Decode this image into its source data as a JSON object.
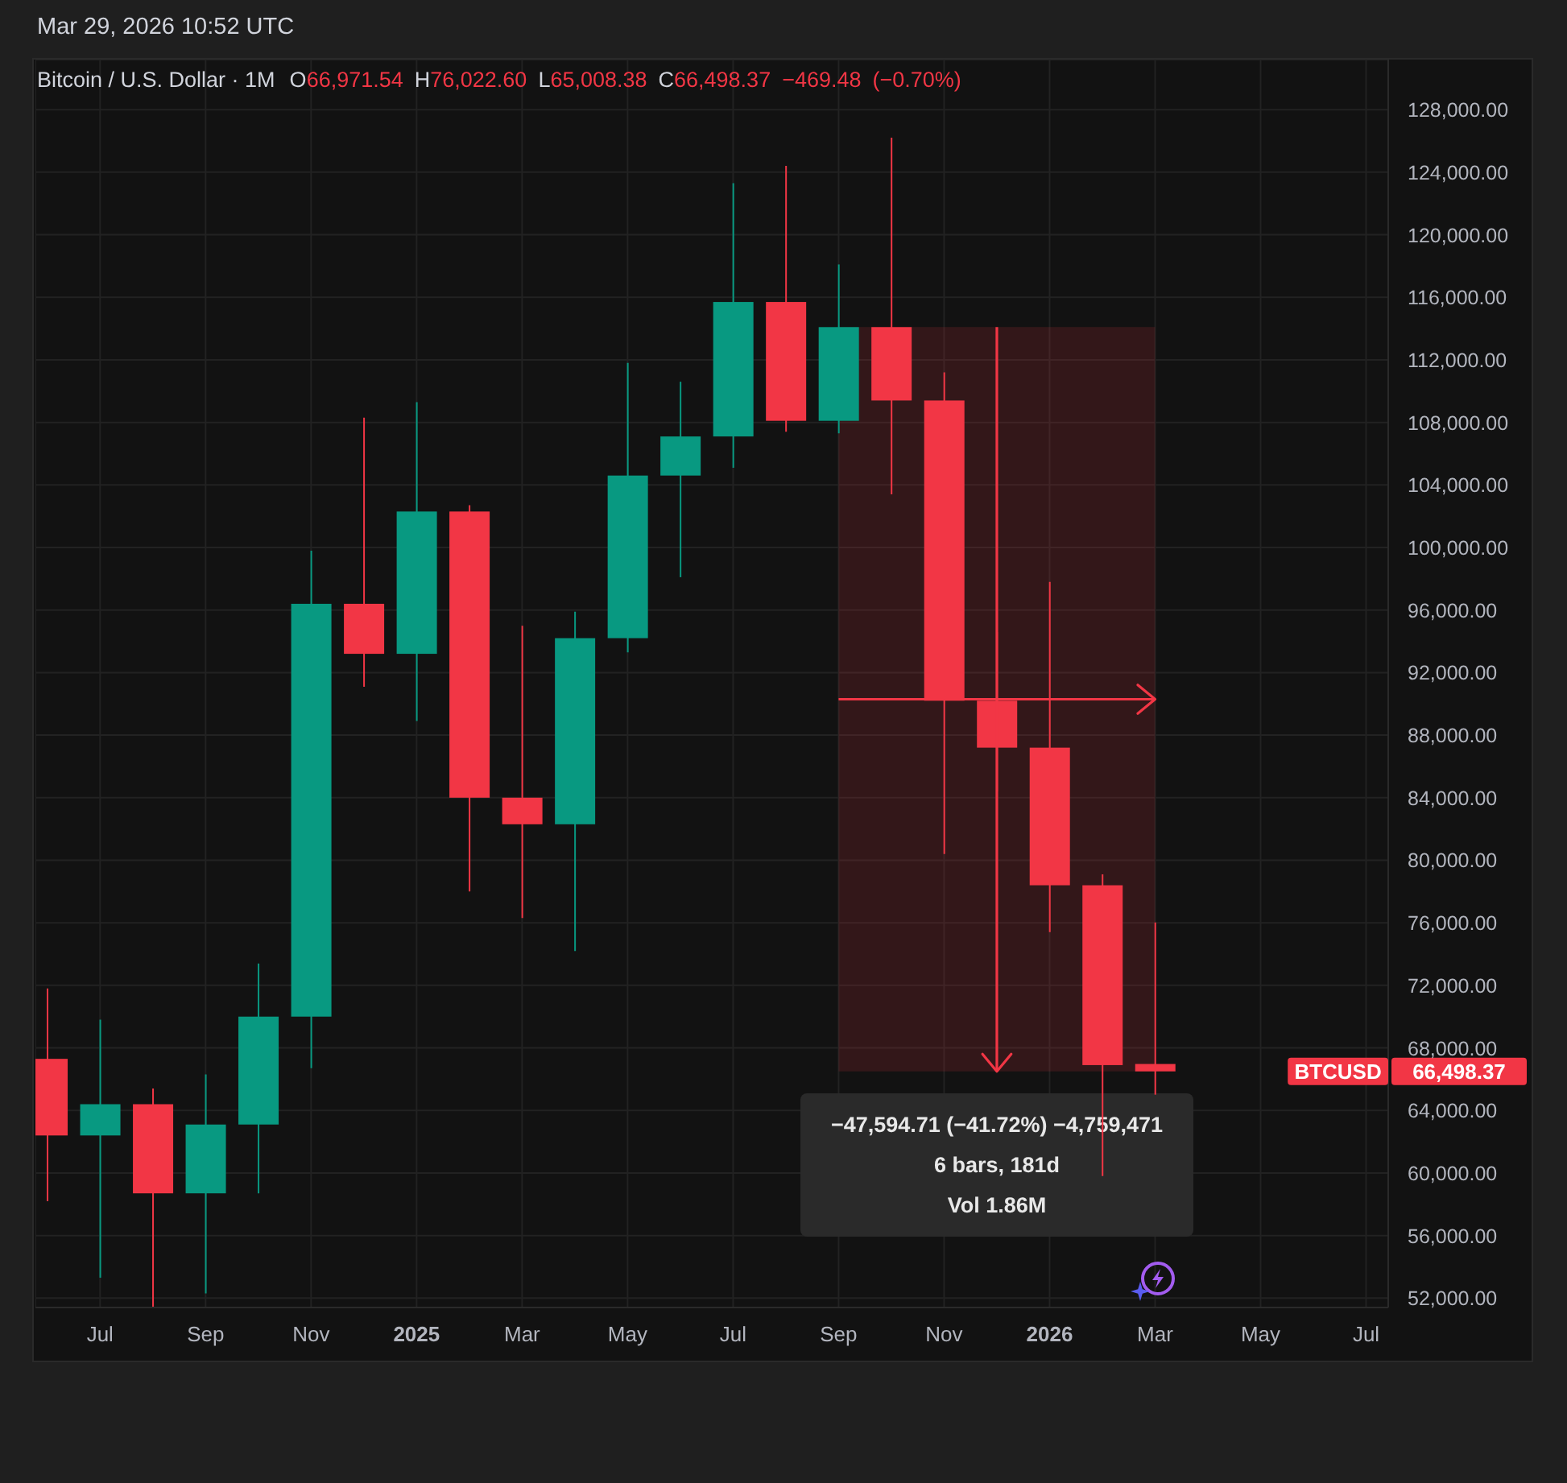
{
  "chart_data": {
    "type": "candlestick",
    "title": "Bitcoin / U.S. Dollar · 1M",
    "annotations": [
      "Mar 29, 2026 10:52 UTC",
      "O66,971.54 H76,022.60 L65,008.38 C66,498.37 −469.48 (−0.70%)",
      "−47,594.71 (−41.72%) −4,759,471",
      "6 bars, 181d",
      "Vol 1.86M",
      "BTCUSD",
      "66,498.37"
    ],
    "x": [
      "2024-06",
      "2024-07",
      "2024-08",
      "2024-09",
      "2024-10",
      "2024-11",
      "2024-12",
      "2025-01",
      "2025-02",
      "2025-03",
      "2025-04",
      "2025-05",
      "2025-06",
      "2025-07",
      "2025-08",
      "2025-09",
      "2025-10",
      "2025-11",
      "2025-12",
      "2026-01",
      "2026-02",
      "2026-03"
    ],
    "ohlc": [
      [
        67300,
        71800,
        58200,
        62400
      ],
      [
        62400,
        69800,
        53300,
        64400
      ],
      [
        64400,
        65400,
        51400,
        58700
      ],
      [
        58700,
        66300,
        52300,
        63100
      ],
      [
        63100,
        73400,
        58700,
        70000
      ],
      [
        70000,
        99800,
        66700,
        96400
      ],
      [
        96400,
        108300,
        91100,
        93200
      ],
      [
        93200,
        109300,
        88900,
        102300
      ],
      [
        102300,
        102700,
        78000,
        84000
      ],
      [
        84000,
        95000,
        76300,
        82300
      ],
      [
        82300,
        95900,
        74200,
        94200
      ],
      [
        94200,
        111800,
        93300,
        104600
      ],
      [
        104600,
        110600,
        98100,
        107100
      ],
      [
        107100,
        123300,
        105100,
        115700
      ],
      [
        115700,
        124400,
        107400,
        108100
      ],
      [
        108100,
        118100,
        107300,
        114093.08
      ],
      [
        114093.08,
        126200,
        103400,
        109400
      ],
      [
        109400,
        111200,
        80400,
        90200
      ],
      [
        90200,
        94600,
        84400,
        87200
      ],
      [
        87200,
        97800,
        75400,
        78400
      ],
      [
        78400,
        79100,
        59800,
        66900
      ],
      [
        66971.54,
        76022.6,
        65008.38,
        66498.37
      ]
    ],
    "colors": [
      "#f23645",
      "#089981",
      "#f23645",
      "#089981",
      "#089981",
      "#089981",
      "#f23645",
      "#089981",
      "#f23645",
      "#f23645",
      "#089981",
      "#089981",
      "#089981",
      "#089981",
      "#f23645",
      "#089981",
      "#f23645",
      "#f23645",
      "#f23645",
      "#f23645",
      "#f23645",
      "#f23645"
    ],
    "xlim": [
      "2024-05-25",
      "2026-07-14"
    ],
    "xticks": [
      {
        "value": "2024-07",
        "label": "Jul"
      },
      {
        "value": "2024-09",
        "label": "Sep"
      },
      {
        "value": "2024-11",
        "label": "Nov"
      },
      {
        "value": "2025-01",
        "label": "2025"
      },
      {
        "value": "2025-03",
        "label": "Mar"
      },
      {
        "value": "2025-05",
        "label": "May"
      },
      {
        "value": "2025-07",
        "label": "Jul"
      },
      {
        "value": "2025-09",
        "label": "Sep"
      },
      {
        "value": "2025-11",
        "label": "Nov"
      },
      {
        "value": "2026-01",
        "label": "2026"
      },
      {
        "value": "2026-03",
        "label": "Mar"
      },
      {
        "value": "2026-05",
        "label": "May"
      },
      {
        "value": "2026-07",
        "label": "Jul"
      }
    ],
    "ylim": [
      51400,
      131200
    ],
    "yticks": [
      {
        "value": 52000,
        "label": "52,000.00"
      },
      {
        "value": 56000,
        "label": "56,000.00"
      },
      {
        "value": 60000,
        "label": "60,000.00"
      },
      {
        "value": 64000,
        "label": "64,000.00"
      },
      {
        "value": 68000,
        "label": "68,000.00"
      },
      {
        "value": 72000,
        "label": "72,000.00"
      },
      {
        "value": 76000,
        "label": "76,000.00"
      },
      {
        "value": 80000,
        "label": "80,000.00"
      },
      {
        "value": 84000,
        "label": "84,000.00"
      },
      {
        "value": 88000,
        "label": "88,000.00"
      },
      {
        "value": 92000,
        "label": "92,000.00"
      },
      {
        "value": 96000,
        "label": "96,000.00"
      },
      {
        "value": 100000,
        "label": "100,000.00"
      },
      {
        "value": 104000,
        "label": "104,000.00"
      },
      {
        "value": 108000,
        "label": "108,000.00"
      },
      {
        "value": 112000,
        "label": "112,000.00"
      },
      {
        "value": 116000,
        "label": "116,000.00"
      },
      {
        "value": 120000,
        "label": "120,000.00"
      },
      {
        "value": 124000,
        "label": "124,000.00"
      },
      {
        "value": 128000,
        "label": "128,000.00"
      }
    ],
    "grid": true,
    "bands": [
      {
        "axis": "x",
        "from": "2025-09",
        "to": "2026-03",
        "color": "#f23645"
      }
    ]
  }
}
